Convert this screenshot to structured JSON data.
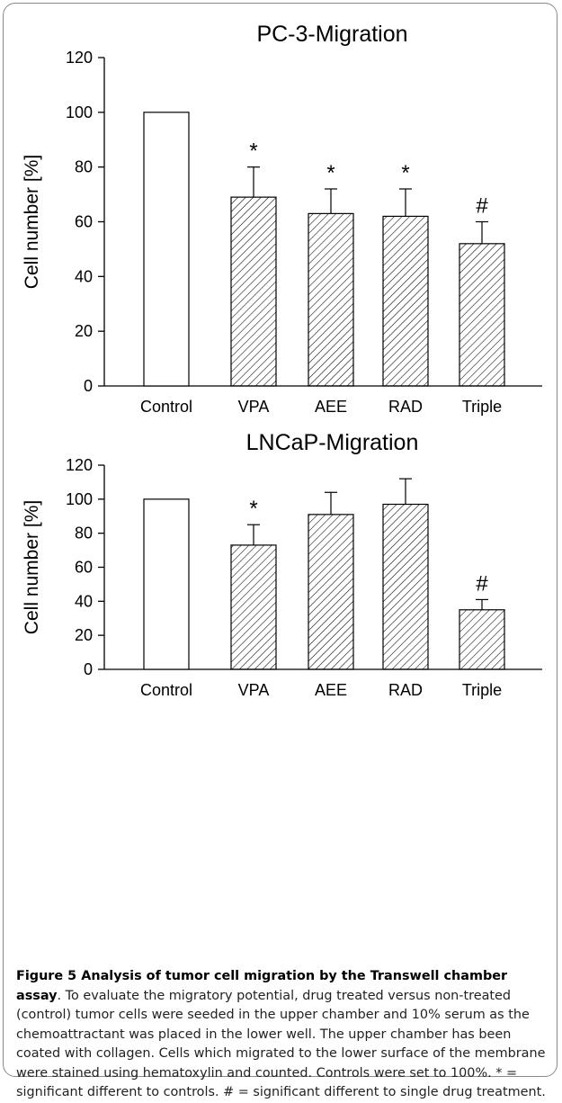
{
  "chart_data": [
    {
      "type": "bar",
      "title": "PC-3-Migration",
      "xlabel": "",
      "ylabel": "Cell number [%]",
      "ylim": [
        0,
        120
      ],
      "yticks": [
        "0",
        "20",
        "40",
        "60",
        "80",
        "100",
        "120"
      ],
      "categories": [
        "Control",
        "VPA",
        "AEE",
        "RAD",
        "Triple"
      ],
      "values": [
        100,
        69,
        63,
        62,
        52
      ],
      "errors": [
        0,
        11,
        9,
        10,
        8
      ],
      "markers": [
        "",
        "*",
        "*",
        "*",
        "#"
      ],
      "fills": [
        "open",
        "hatched",
        "hatched",
        "hatched",
        "hatched"
      ]
    },
    {
      "type": "bar",
      "title": "LNCaP-Migration",
      "xlabel": "",
      "ylabel": "Cell number [%]",
      "ylim": [
        0,
        120
      ],
      "yticks": [
        "0",
        "20",
        "40",
        "60",
        "80",
        "100",
        "120"
      ],
      "categories": [
        "Control",
        "VPA",
        "AEE",
        "RAD",
        "Triple"
      ],
      "values": [
        100,
        73,
        91,
        97,
        35
      ],
      "errors": [
        0,
        12,
        13,
        15,
        6
      ],
      "markers": [
        "",
        "*",
        "",
        "",
        "#"
      ],
      "fills": [
        "open",
        "hatched",
        "hatched",
        "hatched",
        "hatched"
      ]
    }
  ],
  "caption": {
    "heading": "Figure 5 Analysis of tumor cell migration by the Transwell chamber assay",
    "body": ". To evaluate the migratory potential, drug treated versus non-treated (control) tumor cells were seeded in the upper chamber and 10% serum as the chemoattractant was placed in the lower well. The upper chamber has been coated with collagen. Cells which migrated to the lower surface of the membrane were stained using hematoxylin and counted. Controls were set to 100%. * = significant different to controls. # = significant different to single drug treatment."
  }
}
